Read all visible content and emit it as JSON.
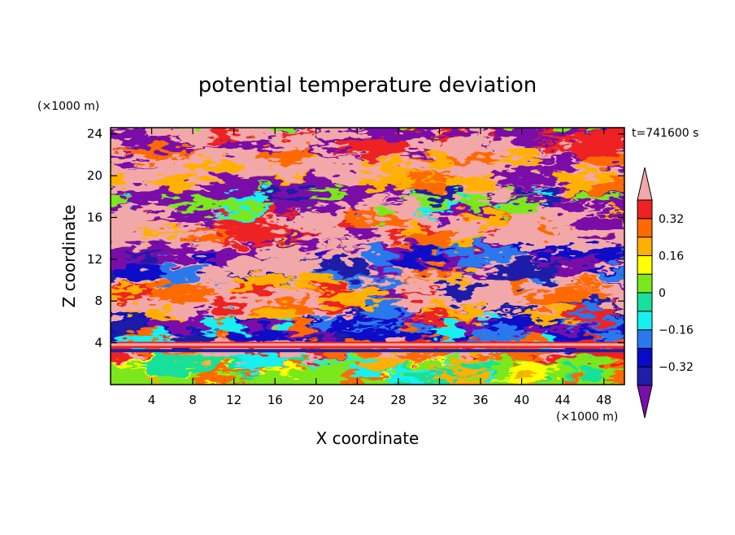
{
  "chart_data": {
    "type": "heatmap",
    "title": "potential temperature deviation",
    "xlabel": "X coordinate",
    "ylabel": "Z coordinate",
    "x_unit": "(×1000 m)",
    "y_unit": "(×1000 m)",
    "time_label": "t=741600 s",
    "xlim": [
      0,
      50
    ],
    "ylim": [
      0,
      24.6
    ],
    "x_ticks": [
      4,
      8,
      12,
      16,
      20,
      24,
      28,
      32,
      36,
      40,
      44,
      48
    ],
    "y_ticks": [
      4,
      8,
      12,
      16,
      20,
      24
    ],
    "colorbar": {
      "levels": [
        -0.4,
        -0.32,
        -0.24,
        -0.16,
        -0.08,
        0,
        0.08,
        0.16,
        0.24,
        0.32,
        0.4
      ],
      "labels": [
        "0.32",
        "0.16",
        "0",
        "−0.16",
        "−0.32"
      ],
      "label_values": [
        0.32,
        0.16,
        0,
        -0.16,
        -0.32
      ],
      "colors": [
        "#7a0fa8",
        "#1e1ea8",
        "#0a0ac8",
        "#2a78ee",
        "#18f0f0",
        "#17e09a",
        "#7ae81c",
        "#ffff00",
        "#ffb000",
        "#ff6a00",
        "#ee2222",
        "#f2a8a8"
      ]
    },
    "structure": {
      "bands": [
        {
          "z_range": [
            0,
            3
          ],
          "description": "weak positive, green/yellow"
        },
        {
          "z_range": [
            3.1,
            4.1
          ],
          "description": "strong positive layer (red/pink)"
        },
        {
          "z_range": [
            4.1,
            24.6
          ],
          "description": "alternating strong positive (pink) and strong negative (purple) layers"
        }
      ]
    }
  }
}
